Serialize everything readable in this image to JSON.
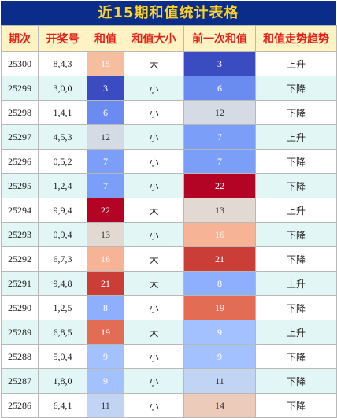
{
  "title": "近15期和值统计表格",
  "headers": [
    "期次",
    "开奖号",
    "和值",
    "和值大小",
    "前一次和值",
    "和值走势趋势"
  ],
  "heat_colors": {
    "3": "#3b4cc0",
    "6": "#6a8cf0",
    "7": "#7b9ff9",
    "8": "#8daffd",
    "9": "#a3c1ff",
    "11": "#c1d4f4",
    "12": "#d5dbe5",
    "13": "#e1d9d2",
    "14": "#eccbba",
    "15": "#f4be9f",
    "16": "#f7b396",
    "19": "#e36c55",
    "21": "#cb3e38",
    "22": "#b40426"
  },
  "rows": [
    {
      "period": "25300",
      "numbers": "8,4,3",
      "sum": "15",
      "size": "大",
      "prev_sum": "3",
      "trend": "上升"
    },
    {
      "period": "25299",
      "numbers": "3,0,0",
      "sum": "3",
      "size": "小",
      "prev_sum": "6",
      "trend": "下降"
    },
    {
      "period": "25298",
      "numbers": "1,4,1",
      "sum": "6",
      "size": "小",
      "prev_sum": "12",
      "trend": "下降"
    },
    {
      "period": "25297",
      "numbers": "4,5,3",
      "sum": "12",
      "size": "小",
      "prev_sum": "7",
      "trend": "上升"
    },
    {
      "period": "25296",
      "numbers": "0,5,2",
      "sum": "7",
      "size": "小",
      "prev_sum": "7",
      "trend": "下降"
    },
    {
      "period": "25295",
      "numbers": "1,2,4",
      "sum": "7",
      "size": "小",
      "prev_sum": "22",
      "trend": "下降"
    },
    {
      "period": "25294",
      "numbers": "9,9,4",
      "sum": "22",
      "size": "大",
      "prev_sum": "13",
      "trend": "上升"
    },
    {
      "period": "25293",
      "numbers": "0,9,4",
      "sum": "13",
      "size": "小",
      "prev_sum": "16",
      "trend": "下降"
    },
    {
      "period": "25292",
      "numbers": "6,7,3",
      "sum": "16",
      "size": "大",
      "prev_sum": "21",
      "trend": "下降"
    },
    {
      "period": "25291",
      "numbers": "9,4,8",
      "sum": "21",
      "size": "大",
      "prev_sum": "8",
      "trend": "上升"
    },
    {
      "period": "25290",
      "numbers": "1,2,5",
      "sum": "8",
      "size": "小",
      "prev_sum": "19",
      "trend": "下降"
    },
    {
      "period": "25289",
      "numbers": "6,8,5",
      "sum": "19",
      "size": "大",
      "prev_sum": "9",
      "trend": "上升"
    },
    {
      "period": "25288",
      "numbers": "5,0,4",
      "sum": "9",
      "size": "小",
      "prev_sum": "9",
      "trend": "下降"
    },
    {
      "period": "25287",
      "numbers": "1,8,0",
      "sum": "9",
      "size": "小",
      "prev_sum": "11",
      "trend": "下降"
    },
    {
      "period": "25286",
      "numbers": "6,4,1",
      "sum": "11",
      "size": "小",
      "prev_sum": "14",
      "trend": "下降"
    }
  ]
}
